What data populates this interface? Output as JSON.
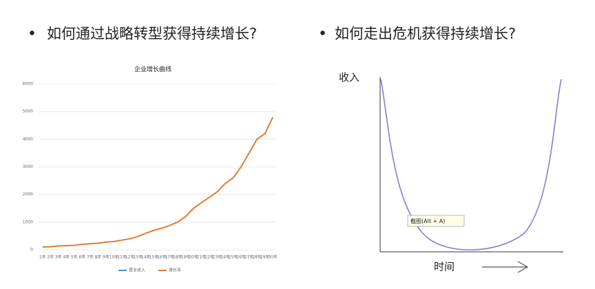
{
  "bullets": [
    "如何通过战略转型获得持续增长?",
    "如何走出危机获得持续增长?"
  ],
  "chart_data": {
    "type": "line",
    "title": "企业增长曲线",
    "categories": [
      "1年",
      "2年",
      "3年",
      "4年",
      "5年",
      "6年",
      "7年",
      "8年",
      "9年",
      "10年",
      "11年",
      "12年",
      "13年",
      "14年",
      "15年",
      "16年",
      "17年",
      "18年",
      "19年",
      "20年",
      "21年",
      "22年",
      "23年",
      "24年",
      "25年",
      "26年",
      "27年",
      "28年",
      "29年",
      "30年"
    ],
    "series": [
      {
        "name": "营业收入",
        "color": "#4a8fd0",
        "values": [
          null,
          null,
          null,
          null,
          null,
          null,
          null,
          null,
          null,
          null,
          null,
          null,
          null,
          null,
          null,
          null,
          null,
          null,
          null,
          null,
          null,
          null,
          null,
          null,
          null,
          null,
          null,
          null,
          null,
          null
        ]
      },
      {
        "name": "增长率",
        "color": "#e07b2e",
        "values": [
          100,
          110,
          140,
          150,
          160,
          200,
          220,
          240,
          280,
          300,
          350,
          400,
          480,
          600,
          700,
          780,
          880,
          1000,
          1200,
          1500,
          1700,
          1900,
          2100,
          2400,
          2600,
          3000,
          3500,
          4000,
          4200,
          4800
        ]
      }
    ],
    "ylim": [
      0,
      6000
    ],
    "yticks": [
      0,
      1000,
      2000,
      3000,
      4000,
      5000,
      6000
    ],
    "grid": true,
    "legend": "bottom"
  },
  "diagram": {
    "y_label": "收入",
    "x_label": "时间",
    "tooltip": "截图(Alt + A)"
  }
}
